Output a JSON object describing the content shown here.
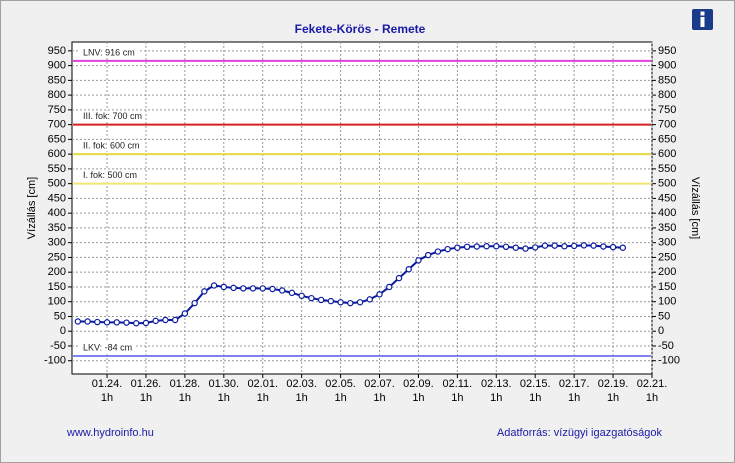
{
  "chart_data": {
    "type": "line",
    "title": "Fekete-Körös - Remete",
    "y_label": "Vízállás [cm]",
    "y2_label": "Vízállás [cm]",
    "source_left": "www.hydroinfo.hu",
    "source_right": "Adatforrás: vízügyi igazgatóságok",
    "xlim": [
      -1.8,
      28
    ],
    "xticks": [
      {
        "value": 0,
        "label": "01.24. 1h"
      },
      {
        "value": 2,
        "label": "01.26. 1h"
      },
      {
        "value": 4,
        "label": "01.28. 1h"
      },
      {
        "value": 6,
        "label": "01.30. 1h"
      },
      {
        "value": 8,
        "label": "02.01. 1h"
      },
      {
        "value": 10,
        "label": "02.03. 1h"
      },
      {
        "value": 12,
        "label": "02.05. 1h"
      },
      {
        "value": 14,
        "label": "02.07. 1h"
      },
      {
        "value": 16,
        "label": "02.09. 1h"
      },
      {
        "value": 18,
        "label": "02.11. 1h"
      },
      {
        "value": 20,
        "label": "02.13. 1h"
      },
      {
        "value": 22,
        "label": "02.15. 1h"
      },
      {
        "value": 24,
        "label": "02.17. 1h"
      },
      {
        "value": 26,
        "label": "02.19. 1h"
      },
      {
        "value": 28,
        "label": "02.21. 1h"
      }
    ],
    "ylim": [
      -145,
      980
    ],
    "yticks": [
      -100,
      -50,
      0,
      50,
      100,
      150,
      200,
      250,
      300,
      350,
      400,
      450,
      500,
      550,
      600,
      650,
      700,
      750,
      800,
      850,
      900,
      950
    ],
    "grid": true,
    "thresholds": [
      {
        "label": "LNV: 916 cm",
        "value": 916,
        "color": "#e040e0"
      },
      {
        "label": "III. fok: 700 cm",
        "value": 700,
        "color": "#d42020"
      },
      {
        "label": "II. fok: 600 cm",
        "value": 600,
        "color": "#e8d840"
      },
      {
        "label": "I. fok: 500 cm",
        "value": 500,
        "color": "#f0e870"
      },
      {
        "label": "LKV: -84 cm",
        "value": -84,
        "color": "#8080f0"
      }
    ],
    "series": [
      {
        "color": "#0a1aa0",
        "x": [
          -1.5,
          -1,
          -0.5,
          0,
          0.5,
          1,
          1.5,
          2,
          2.5,
          3,
          3.5,
          4,
          4.5,
          5,
          5.5,
          6,
          6.5,
          7,
          7.5,
          8,
          8.5,
          9,
          9.5,
          10,
          10.5,
          11,
          11.5,
          12,
          12.5,
          13,
          13.5,
          14,
          14.5,
          15,
          15.5,
          16,
          16.5,
          17,
          17.5,
          18,
          18.5,
          19,
          19.5,
          20,
          20.5,
          21,
          21.5,
          22,
          22.5,
          23,
          23.5,
          24,
          24.5,
          25,
          25.5,
          26,
          26.5
        ],
        "values": [
          33,
          33,
          31,
          30,
          30,
          29,
          27,
          28,
          35,
          38,
          38,
          60,
          95,
          135,
          155,
          150,
          147,
          145,
          145,
          145,
          143,
          138,
          130,
          120,
          112,
          106,
          102,
          98,
          95,
          98,
          108,
          125,
          150,
          180,
          210,
          240,
          258,
          270,
          278,
          283,
          286,
          287,
          288,
          288,
          286,
          283,
          280,
          284,
          290,
          290,
          288,
          289,
          291,
          290,
          287,
          285,
          283
        ]
      }
    ]
  }
}
